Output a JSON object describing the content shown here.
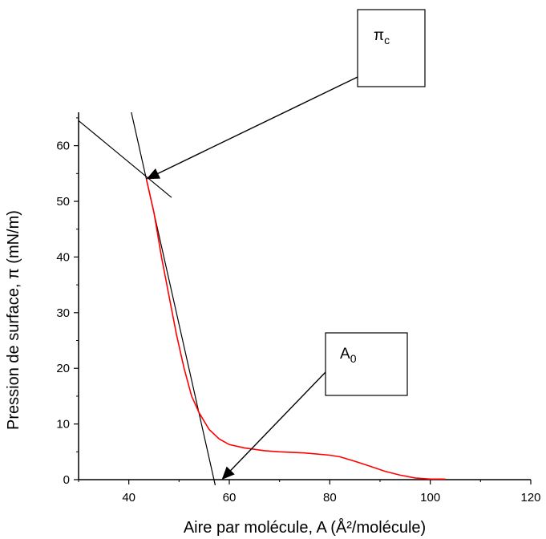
{
  "chart_data": {
    "type": "line",
    "xlabel": "Aire par molécule, A (Å²/molécule)",
    "ylabel": "Pression de surface, π (mN/m)",
    "xlim": [
      30,
      120
    ],
    "ylim": [
      0,
      66
    ],
    "x_ticks": [
      40,
      60,
      80,
      100,
      120
    ],
    "y_ticks": [
      0,
      10,
      20,
      30,
      40,
      50,
      60
    ],
    "grid": false,
    "series": [
      {
        "color": "#ff0000",
        "points": [
          [
            43.5,
            54
          ],
          [
            45,
            48
          ],
          [
            46.5,
            40
          ],
          [
            48,
            33
          ],
          [
            49.5,
            26
          ],
          [
            51,
            20
          ],
          [
            52.5,
            15
          ],
          [
            54,
            12
          ],
          [
            56,
            9
          ],
          [
            58,
            7.3
          ],
          [
            60,
            6.3
          ],
          [
            63,
            5.7
          ],
          [
            67,
            5.2
          ],
          [
            70,
            5.0
          ],
          [
            75,
            4.8
          ],
          [
            80,
            4.4
          ],
          [
            82,
            4.1
          ],
          [
            85,
            3.3
          ],
          [
            88,
            2.4
          ],
          [
            91,
            1.5
          ],
          [
            94,
            0.8
          ],
          [
            97,
            0.3
          ],
          [
            100,
            0.1
          ],
          [
            103,
            0.1
          ]
        ]
      }
    ],
    "tangent_lines": [
      {
        "color": "#000000",
        "from": [
          30,
          64.5
        ],
        "to": [
          48.5,
          50.7
        ]
      },
      {
        "color": "#000000",
        "from": [
          40.5,
          66
        ],
        "to": [
          57.2,
          -1
        ]
      }
    ],
    "annotations": [
      {
        "label": "π",
        "subscript": "c",
        "point": [
          43.5,
          54
        ]
      },
      {
        "label": "A",
        "subscript": "0",
        "point": [
          58.5,
          0
        ]
      }
    ]
  }
}
